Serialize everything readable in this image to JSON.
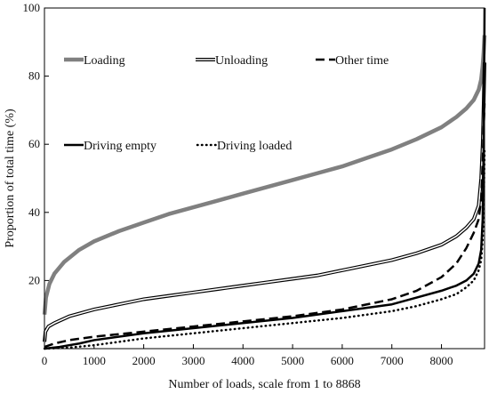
{
  "chart_data": {
    "type": "line",
    "xlabel": "Number of loads, scale from 1 to 8868",
    "ylabel": "Proportion of total time (%)",
    "xlim": [
      0,
      8868
    ],
    "ylim": [
      0,
      100
    ],
    "x_ticks": [
      0,
      1000,
      2000,
      3000,
      4000,
      5000,
      6000,
      7000,
      8000
    ],
    "y_ticks": [
      20,
      40,
      60,
      80,
      100
    ],
    "grid": false,
    "legend_placement": "top, two rows inside plot",
    "series": [
      {
        "name": "Loading",
        "style": "thick-gray",
        "color": "#808080",
        "points": [
          [
            1,
            10
          ],
          [
            30,
            15
          ],
          [
            100,
            19
          ],
          [
            200,
            22
          ],
          [
            400,
            25.5
          ],
          [
            700,
            29
          ],
          [
            1000,
            31.5
          ],
          [
            1500,
            34.5
          ],
          [
            2000,
            37
          ],
          [
            2500,
            39.5
          ],
          [
            3000,
            41.5
          ],
          [
            3500,
            43.5
          ],
          [
            4000,
            45.5
          ],
          [
            4500,
            47.5
          ],
          [
            5000,
            49.5
          ],
          [
            5500,
            51.5
          ],
          [
            6000,
            53.5
          ],
          [
            6500,
            56
          ],
          [
            7000,
            58.5
          ],
          [
            7500,
            61.5
          ],
          [
            8000,
            65
          ],
          [
            8300,
            68
          ],
          [
            8500,
            70.5
          ],
          [
            8650,
            73
          ],
          [
            8750,
            76
          ],
          [
            8800,
            79
          ],
          [
            8830,
            83
          ],
          [
            8850,
            87
          ],
          [
            8868,
            92
          ]
        ]
      },
      {
        "name": "Unloading",
        "style": "double-line",
        "color": "#000000",
        "points": [
          [
            1,
            2
          ],
          [
            20,
            5
          ],
          [
            80,
            6.5
          ],
          [
            200,
            7.5
          ],
          [
            500,
            9.5
          ],
          [
            1000,
            11.5
          ],
          [
            1500,
            13
          ],
          [
            2000,
            14.5
          ],
          [
            2500,
            15.5
          ],
          [
            3000,
            16.5
          ],
          [
            3500,
            17.5
          ],
          [
            4000,
            18.5
          ],
          [
            4500,
            19.5
          ],
          [
            5000,
            20.5
          ],
          [
            5500,
            21.5
          ],
          [
            6000,
            23
          ],
          [
            6500,
            24.5
          ],
          [
            7000,
            26
          ],
          [
            7500,
            28
          ],
          [
            8000,
            30.5
          ],
          [
            8300,
            33
          ],
          [
            8500,
            35.5
          ],
          [
            8650,
            38
          ],
          [
            8750,
            42
          ],
          [
            8800,
            50
          ],
          [
            8830,
            60
          ],
          [
            8850,
            72
          ],
          [
            8868,
            84
          ]
        ]
      },
      {
        "name": "Other time",
        "style": "dashed",
        "color": "#000000",
        "points": [
          [
            1,
            0.5
          ],
          [
            200,
            1.5
          ],
          [
            500,
            2.5
          ],
          [
            1000,
            3.5
          ],
          [
            2000,
            5
          ],
          [
            3000,
            6.5
          ],
          [
            4000,
            8
          ],
          [
            5000,
            9.5
          ],
          [
            6000,
            11.5
          ],
          [
            7000,
            14.5
          ],
          [
            7500,
            17
          ],
          [
            8000,
            21
          ],
          [
            8300,
            25
          ],
          [
            8500,
            29.5
          ],
          [
            8650,
            34
          ],
          [
            8750,
            38
          ],
          [
            8800,
            44
          ],
          [
            8830,
            55
          ],
          [
            8850,
            65
          ],
          [
            8868,
            72
          ]
        ]
      },
      {
        "name": "Driving empty",
        "style": "solid-thick",
        "color": "#000000",
        "points": [
          [
            1,
            0
          ],
          [
            300,
            0.5
          ],
          [
            700,
            1.5
          ],
          [
            1000,
            2.5
          ],
          [
            2000,
            4.5
          ],
          [
            3000,
            6
          ],
          [
            4000,
            7.5
          ],
          [
            5000,
            9
          ],
          [
            6000,
            11
          ],
          [
            7000,
            13
          ],
          [
            7500,
            15
          ],
          [
            8000,
            17
          ],
          [
            8300,
            18.5
          ],
          [
            8500,
            20
          ],
          [
            8650,
            22
          ],
          [
            8750,
            25
          ],
          [
            8800,
            29
          ],
          [
            8830,
            38
          ],
          [
            8850,
            60
          ],
          [
            8868,
            100
          ]
        ]
      },
      {
        "name": "Driving loaded",
        "style": "dotted",
        "color": "#000000",
        "points": [
          [
            1,
            0
          ],
          [
            500,
            0.3
          ],
          [
            1000,
            1
          ],
          [
            2000,
            3
          ],
          [
            3000,
            4.5
          ],
          [
            4000,
            6
          ],
          [
            5000,
            7.5
          ],
          [
            6000,
            9
          ],
          [
            7000,
            11
          ],
          [
            7500,
            12.5
          ],
          [
            8000,
            14.5
          ],
          [
            8300,
            16
          ],
          [
            8500,
            18
          ],
          [
            8650,
            20
          ],
          [
            8750,
            23
          ],
          [
            8800,
            26
          ],
          [
            8830,
            32
          ],
          [
            8850,
            42
          ],
          [
            8868,
            58
          ]
        ]
      }
    ]
  }
}
